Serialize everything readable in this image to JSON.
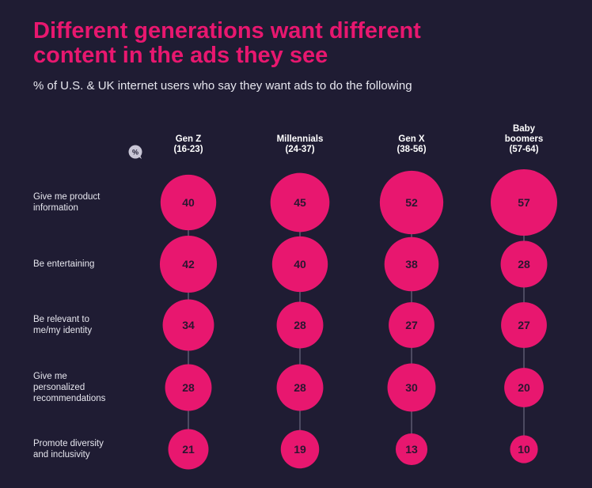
{
  "chart_data": {
    "type": "bubble-matrix",
    "title_lines": [
      "Different generations want different",
      "content in the ads they see"
    ],
    "subtitle": "% of U.S. & UK internet users who say they want ads to do the following",
    "unit_icon": "%",
    "columns": [
      {
        "lines": [
          "Gen Z",
          "(16-23)"
        ]
      },
      {
        "lines": [
          "Millennials",
          "(24-37)"
        ]
      },
      {
        "lines": [
          "Gen X",
          "(38-56)"
        ]
      },
      {
        "lines": [
          "Baby",
          "boomers",
          "(57-64)"
        ]
      }
    ],
    "rows": [
      {
        "lines": [
          "Give me product",
          "information"
        ],
        "values": [
          40,
          45,
          52,
          57
        ]
      },
      {
        "lines": [
          "Be entertaining"
        ],
        "values": [
          42,
          40,
          38,
          28
        ]
      },
      {
        "lines": [
          "Be relevant to",
          "me/my identity"
        ],
        "values": [
          34,
          28,
          27,
          27
        ]
      },
      {
        "lines": [
          "Give me",
          "personalized",
          "recommendations"
        ],
        "values": [
          28,
          28,
          30,
          20
        ]
      },
      {
        "lines": [
          "Promote diversity",
          "and inclusivity"
        ],
        "values": [
          21,
          19,
          13,
          10
        ]
      }
    ]
  },
  "colors": {
    "background": "#1f1c33",
    "accent": "#e8176f",
    "bubble_text": "#2a1630",
    "line": "#6c6880"
  }
}
